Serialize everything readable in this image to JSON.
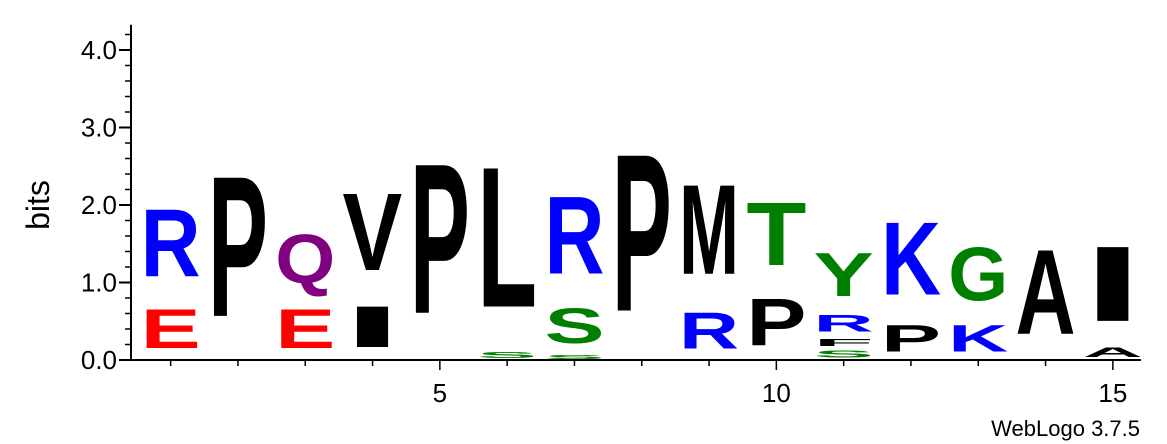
{
  "chart_data": {
    "type": "sequence-logo",
    "ylabel": "bits",
    "ylim": [
      0,
      4.3
    ],
    "yticks": [
      "0.0",
      "1.0",
      "2.0",
      "3.0",
      "4.0"
    ],
    "xticks": [
      "5",
      "10",
      "15"
    ],
    "credit": "WebLogo 3.7.5",
    "colors": {
      "R": "#0000ff",
      "K": "#0000ff",
      "E": "#ff0000",
      "Q": "#800080",
      "S": "#008000",
      "T": "#008000",
      "G": "#008000",
      "Y": "#008000",
      "P": "#000000",
      "V": "#000000",
      "I": "#000000",
      "L": "#000000",
      "M": "#000000",
      "F": "#000000",
      "A": "#000000"
    },
    "positions": [
      {
        "pos": 1,
        "letters": [
          {
            "l": "E",
            "h": 0.8
          },
          {
            "l": "R",
            "h": 1.4
          }
        ]
      },
      {
        "pos": 2,
        "letters": [
          {
            "l": "P",
            "h": 2.9
          }
        ]
      },
      {
        "pos": 3,
        "letters": [
          {
            "l": "E",
            "h": 0.8
          },
          {
            "l": "Q",
            "h": 1.0
          }
        ]
      },
      {
        "pos": 4,
        "letters": [
          {
            "l": "I",
            "h": 0.85
          },
          {
            "l": "V",
            "h": 1.6
          }
        ]
      },
      {
        "pos": 5,
        "letters": [
          {
            "l": "P",
            "h": 3.1
          }
        ]
      },
      {
        "pos": 6,
        "letters": [
          {
            "l": "S",
            "h": 0.12
          },
          {
            "l": "L",
            "h": 2.9
          }
        ]
      },
      {
        "pos": 7,
        "letters": [
          {
            "l": "S",
            "h": 0.08
          },
          {
            "l": "S",
            "h": 0.72
          },
          {
            "l": "R",
            "h": 1.6
          }
        ]
      },
      {
        "pos": 8,
        "letters": [
          {
            "l": "P",
            "h": 3.25
          }
        ]
      },
      {
        "pos": 9,
        "letters": [
          {
            "l": "R",
            "h": 0.75
          },
          {
            "l": "M",
            "h": 1.85
          }
        ]
      },
      {
        "pos": 10,
        "letters": [
          {
            "l": "P",
            "h": 0.97
          },
          {
            "l": "T",
            "h": 1.3
          }
        ]
      },
      {
        "pos": 11,
        "letters": [
          {
            "l": "S",
            "h": 0.15
          },
          {
            "l": "F",
            "h": 0.15
          },
          {
            "l": "R",
            "h": 0.35
          },
          {
            "l": "Y",
            "h": 0.9
          }
        ]
      },
      {
        "pos": 12,
        "letters": [
          {
            "l": "P",
            "h": 0.55
          },
          {
            "l": "K",
            "h": 1.5
          }
        ]
      },
      {
        "pos": 13,
        "letters": [
          {
            "l": "K",
            "h": 0.55
          },
          {
            "l": "G",
            "h": 1.1
          }
        ]
      },
      {
        "pos": 14,
        "letters": [
          {
            "l": "A",
            "h": 1.75
          }
        ]
      },
      {
        "pos": 15,
        "letters": [
          {
            "l": "A",
            "h": 0.2
          },
          {
            "l": "I",
            "h": 1.55
          }
        ]
      }
    ]
  }
}
